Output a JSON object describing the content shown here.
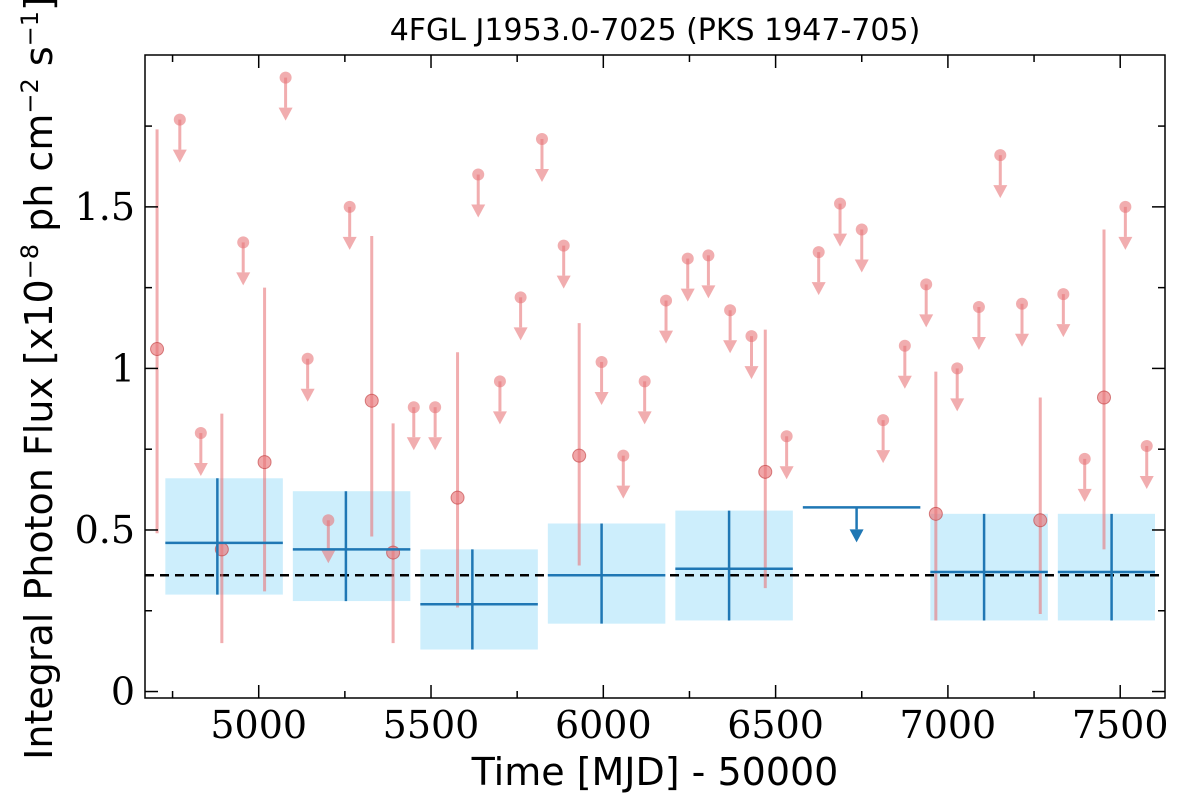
{
  "chart_data": {
    "type": "scatter",
    "title": "4FGL J1953.0-7025 (PKS 1947-705)",
    "xlabel": "Time [MJD] - 50000",
    "ylabel": "Integral Photon Flux [x10$^{-8}$ ph cm$^{-2}$ s$^{-1}$]",
    "ylabel_parts": {
      "prefix": "Integral Photon Flux [x10",
      "exp1": "−8",
      "mid1": " ph cm",
      "exp2": "−2",
      "mid2": " s",
      "exp3": "−1",
      "suffix": "]"
    },
    "xlim": [
      4670,
      7630
    ],
    "ylim": [
      -0.02,
      1.97
    ],
    "x_ticks": [
      5000,
      5500,
      6000,
      6500,
      7000,
      7500
    ],
    "x_tick_labels": [
      "5000",
      "5500",
      "6000",
      "6500",
      "7000",
      "7500"
    ],
    "x_minor_ticks": [
      4750,
      5250,
      5750,
      6250,
      6750,
      7250
    ],
    "y_ticks": [
      0,
      0.5,
      1,
      1.5
    ],
    "y_tick_labels": [
      "0",
      "0.5",
      "1",
      "1.5"
    ],
    "y_minor_ticks": [
      0.25,
      0.75,
      1.25,
      1.75
    ],
    "grid": false,
    "colors": {
      "short_bins": "#e8777a",
      "long_bins": "#1f77b4",
      "band": "#cdeefc",
      "mean_line": "#000000"
    },
    "mean_flux": 0.36,
    "series": [
      {
        "kind": "detections",
        "points": [
          {
            "x": 4705,
            "y": 1.06,
            "ylo": 0.49,
            "yhi": 1.74
          },
          {
            "x": 4893,
            "y": 0.44,
            "ylo": 0.15,
            "yhi": 0.86
          },
          {
            "x": 5017,
            "y": 0.71,
            "ylo": 0.31,
            "yhi": 1.25
          },
          {
            "x": 5328,
            "y": 0.9,
            "ylo": 0.48,
            "yhi": 1.41
          },
          {
            "x": 5390,
            "y": 0.43,
            "ylo": 0.15,
            "yhi": 0.83
          },
          {
            "x": 5577,
            "y": 0.6,
            "ylo": 0.26,
            "yhi": 1.05
          },
          {
            "x": 5930,
            "y": 0.73,
            "ylo": 0.39,
            "yhi": 1.14
          },
          {
            "x": 6470,
            "y": 0.68,
            "ylo": 0.32,
            "yhi": 1.12
          },
          {
            "x": 6965,
            "y": 0.55,
            "ylo": 0.22,
            "yhi": 0.99
          },
          {
            "x": 7268,
            "y": 0.53,
            "ylo": 0.24,
            "yhi": 0.91
          },
          {
            "x": 7453,
            "y": 0.91,
            "ylo": 0.44,
            "yhi": 1.43
          }
        ]
      },
      {
        "kind": "upper_limits",
        "points": [
          {
            "x": 4771,
            "y": 1.77
          },
          {
            "x": 4832,
            "y": 0.8
          },
          {
            "x": 4955,
            "y": 1.39
          },
          {
            "x": 5078,
            "y": 1.9
          },
          {
            "x": 5142,
            "y": 1.03
          },
          {
            "x": 5202,
            "y": 0.53
          },
          {
            "x": 5264,
            "y": 1.5
          },
          {
            "x": 5450,
            "y": 0.88
          },
          {
            "x": 5512,
            "y": 0.88
          },
          {
            "x": 5637,
            "y": 1.6
          },
          {
            "x": 5700,
            "y": 0.96
          },
          {
            "x": 5760,
            "y": 1.22
          },
          {
            "x": 5822,
            "y": 1.71
          },
          {
            "x": 5885,
            "y": 1.38
          },
          {
            "x": 5995,
            "y": 1.02
          },
          {
            "x": 6058,
            "y": 0.73
          },
          {
            "x": 6120,
            "y": 0.96
          },
          {
            "x": 6182,
            "y": 1.21
          },
          {
            "x": 6245,
            "y": 1.34
          },
          {
            "x": 6305,
            "y": 1.35
          },
          {
            "x": 6368,
            "y": 1.18
          },
          {
            "x": 6430,
            "y": 1.1
          },
          {
            "x": 6532,
            "y": 0.79
          },
          {
            "x": 6625,
            "y": 1.36
          },
          {
            "x": 6687,
            "y": 1.51
          },
          {
            "x": 6750,
            "y": 1.43
          },
          {
            "x": 6812,
            "y": 0.84
          },
          {
            "x": 6875,
            "y": 1.07
          },
          {
            "x": 6937,
            "y": 1.26
          },
          {
            "x": 7027,
            "y": 1.0
          },
          {
            "x": 7090,
            "y": 1.19
          },
          {
            "x": 7152,
            "y": 1.66
          },
          {
            "x": 7215,
            "y": 1.2
          },
          {
            "x": 7335,
            "y": 1.23
          },
          {
            "x": 7397,
            "y": 0.72
          },
          {
            "x": 7515,
            "y": 1.5
          },
          {
            "x": 7577,
            "y": 0.76
          }
        ]
      },
      {
        "kind": "long_bins",
        "points": [
          {
            "x0": 4700,
            "x1": 5070,
            "y": 0.46,
            "ylo": 0.3,
            "yhi": 0.66,
            "xc": 4880
          },
          {
            "x0": 5070,
            "x1": 5440,
            "y": 0.44,
            "ylo": 0.28,
            "yhi": 0.62,
            "xc": 5253
          },
          {
            "x0": 5440,
            "x1": 5810,
            "y": 0.27,
            "ylo": 0.13,
            "yhi": 0.44,
            "xc": 5620
          },
          {
            "x0": 5810,
            "x1": 6180,
            "y": 0.36,
            "ylo": 0.21,
            "yhi": 0.52,
            "xc": 5995
          },
          {
            "x0": 6180,
            "x1": 6550,
            "y": 0.38,
            "ylo": 0.22,
            "yhi": 0.56,
            "xc": 6365
          },
          {
            "x0": 7290,
            "x1": 7290,
            "y": 0.0,
            "ylo": 0.0,
            "yhi": 0.0,
            "xc": 7290,
            "skip": true
          },
          {
            "x0": 6920,
            "x1": 7290,
            "y": 0.37,
            "ylo": 0.22,
            "yhi": 0.55,
            "xc": 7105
          },
          {
            "x0": 7290,
            "x1": 7660,
            "y": 0.37,
            "ylo": 0.22,
            "yhi": 0.55,
            "xc": 7475
          }
        ]
      },
      {
        "kind": "long_bin_upper_limits",
        "points": [
          {
            "x0": 6550,
            "x1": 6920,
            "y": 0.57,
            "xc": 6735
          }
        ]
      }
    ]
  }
}
